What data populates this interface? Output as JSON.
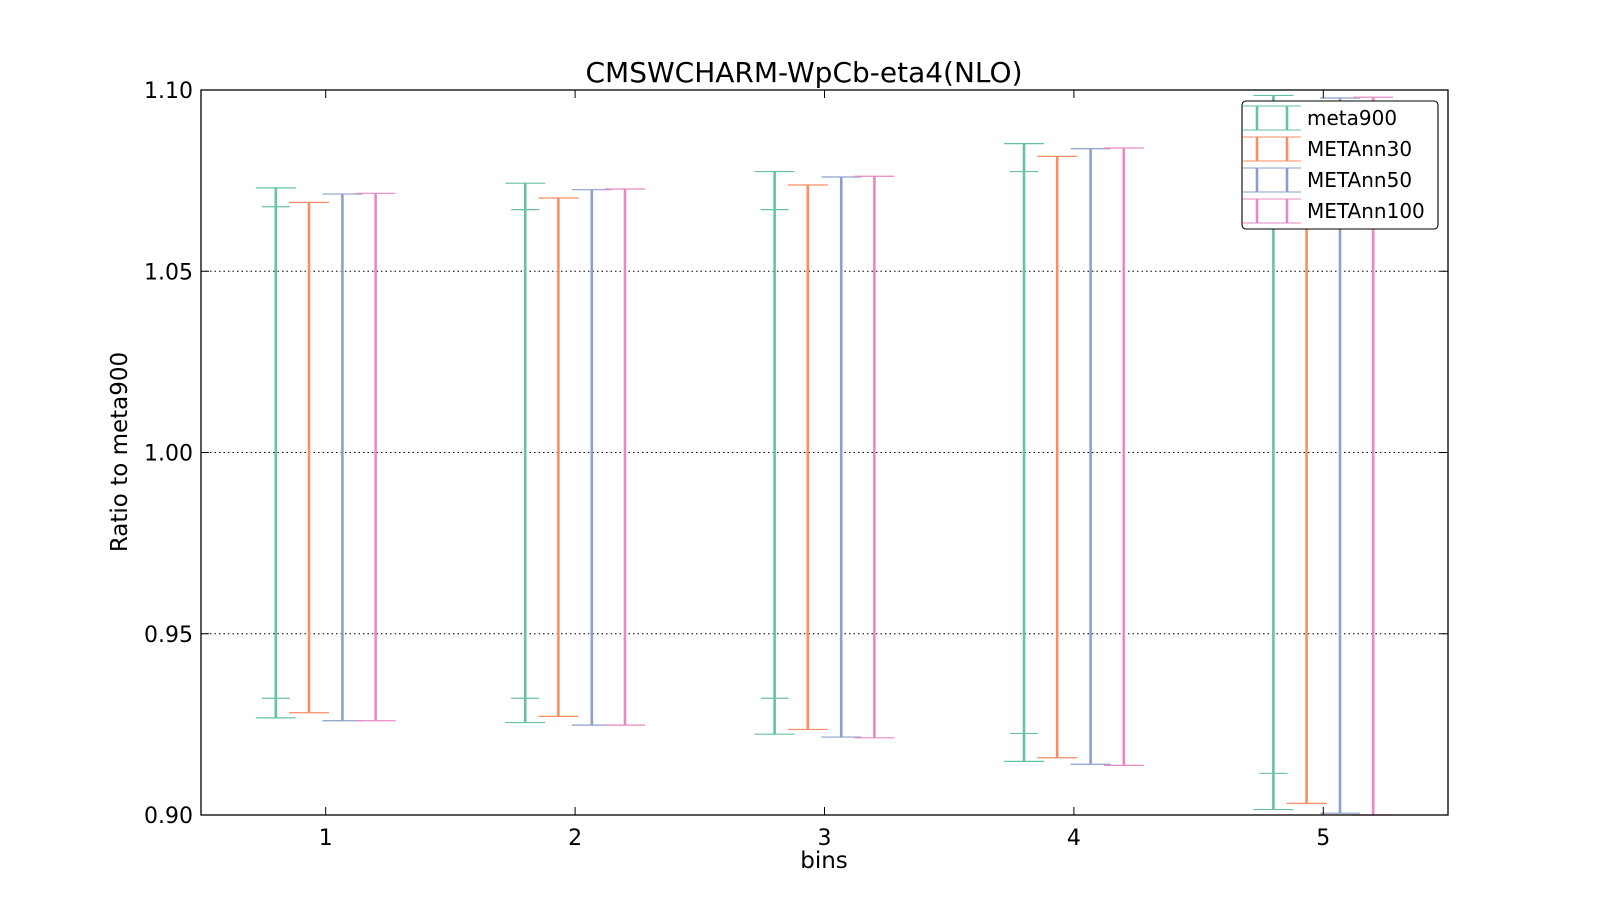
{
  "chart_data": {
    "type": "errorbar",
    "title": "CMSWCHARM-WpCb-eta4(NLO)",
    "xlabel": "bins",
    "ylabel": "Ratio to meta900",
    "xlim": [
      0.5,
      5.5
    ],
    "ylim": [
      0.9,
      1.1
    ],
    "x_ticks": [
      "1",
      "2",
      "3",
      "4",
      "5"
    ],
    "y_ticks": [
      "0.90",
      "0.95",
      "1.00",
      "1.05",
      "1.10"
    ],
    "y_tick_values": [
      0.9,
      0.95,
      1.0,
      1.05,
      1.1
    ],
    "grid": "horizontal-dotted",
    "legend_position": "top-right",
    "series": [
      {
        "name": "meta900",
        "color": "#66c2a5",
        "offset": -0.2,
        "lower": [
          0.9268,
          0.9255,
          0.9223,
          0.9148,
          0.9015
        ],
        "upper": [
          1.073,
          1.0743,
          1.0775,
          1.0852,
          1.0985
        ],
        "inner_lower": [
          0.9322,
          0.9322,
          0.9322,
          0.9225,
          0.9115
        ],
        "inner_upper": [
          1.0678,
          1.067,
          1.067,
          1.0775,
          1.0955
        ]
      },
      {
        "name": "METAnn30",
        "color": "#fc8d62",
        "offset": -0.067,
        "lower": [
          0.9282,
          0.9272,
          0.9236,
          0.9158,
          0.9032
        ],
        "upper": [
          1.069,
          1.0702,
          1.0738,
          1.0817,
          1.0965
        ]
      },
      {
        "name": "METAnn50",
        "color": "#8da0cb",
        "offset": 0.067,
        "lower": [
          0.926,
          0.9248,
          0.9215,
          0.914,
          0.9005
        ],
        "upper": [
          1.0713,
          1.0725,
          1.076,
          1.0838,
          1.0978
        ]
      },
      {
        "name": "METAnn100",
        "color": "#e78ac3",
        "offset": 0.2,
        "lower": [
          0.926,
          0.9248,
          0.9213,
          0.9137,
          0.9
        ],
        "upper": [
          1.0715,
          1.0727,
          1.0762,
          1.084,
          1.098
        ]
      }
    ]
  }
}
